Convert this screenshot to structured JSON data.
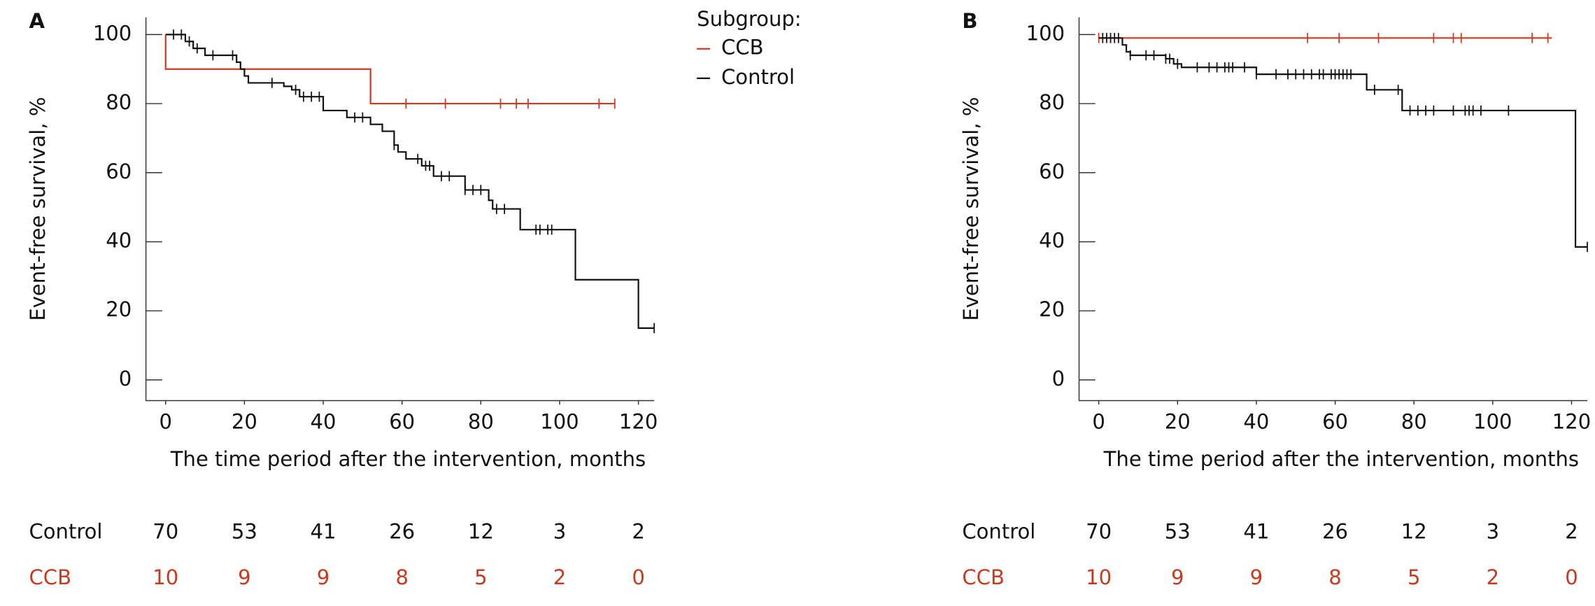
{
  "chart_data": [
    {
      "type": "step",
      "panel": "A",
      "x_label": "The time period after the intervention, months",
      "y_label": "Event-free survival, %",
      "xlim": [
        -5,
        124
      ],
      "ylim": [
        -6,
        105
      ],
      "xticks": [
        0,
        20,
        40,
        60,
        80,
        100,
        120
      ],
      "yticks": [
        0,
        20,
        40,
        60,
        80,
        100
      ],
      "legend_title": "Subgroup:",
      "series": [
        {
          "name": "CCB",
          "color": "#d0391f",
          "x": [
            0,
            0,
            52,
            114
          ],
          "values": [
            100,
            90,
            80,
            80
          ],
          "censored": [
            61,
            71,
            85,
            89,
            92,
            110,
            114
          ]
        },
        {
          "name": "Control",
          "color": "#111111",
          "x": [
            0,
            5,
            7,
            10,
            18,
            19,
            20,
            21,
            30,
            32,
            34,
            40,
            46,
            52,
            55,
            58,
            59,
            61,
            65,
            68,
            76,
            82,
            83,
            90,
            104,
            120,
            124
          ],
          "values": [
            100,
            98,
            96,
            94,
            92,
            90,
            88,
            86,
            85,
            84,
            82,
            78,
            76,
            74,
            72,
            68,
            66,
            64,
            62,
            59,
            55,
            52,
            49.5,
            43.5,
            29,
            15,
            15
          ],
          "censored": [
            2,
            4,
            6,
            8,
            12,
            17,
            27,
            33,
            35,
            37,
            39,
            48,
            50,
            58,
            64,
            66,
            67,
            70,
            72,
            76,
            78,
            80,
            84,
            86,
            94,
            95,
            97,
            98,
            124
          ]
        }
      ],
      "risk_table": [
        {
          "name": "Control",
          "color": "#111111",
          "values": [
            70,
            53,
            41,
            26,
            12,
            3,
            2
          ]
        },
        {
          "name": "CCB",
          "color": "#c8391e",
          "values": [
            10,
            9,
            9,
            8,
            5,
            2,
            0
          ]
        }
      ]
    },
    {
      "type": "step",
      "panel": "B",
      "x_label": "The time period after the intervention, months",
      "y_label": "Event-free survival, %",
      "xlim": [
        -5,
        124
      ],
      "ylim": [
        -6,
        105
      ],
      "xticks": [
        0,
        20,
        40,
        60,
        80,
        100,
        120
      ],
      "yticks": [
        0,
        20,
        40,
        60,
        80,
        100
      ],
      "series": [
        {
          "color": "#d0391f",
          "x": [
            0,
            115
          ],
          "values": [
            99,
            99
          ],
          "censored": [
            0,
            53,
            61,
            71,
            85,
            90,
            92,
            110,
            114
          ]
        },
        {
          "color": "#111111",
          "x": [
            0,
            6,
            7,
            8,
            17,
            19,
            21,
            40,
            68,
            77,
            121,
            124
          ],
          "values": [
            99,
            97,
            95,
            94,
            93,
            91.5,
            90.5,
            88.5,
            84,
            78,
            38.5,
            38.5
          ],
          "censored": [
            1,
            2,
            3,
            4,
            5,
            8,
            12,
            14,
            17,
            18,
            20,
            25,
            28,
            30,
            32,
            33,
            34,
            37,
            40,
            45,
            48,
            50,
            52,
            54,
            56,
            57,
            59,
            60,
            61,
            62,
            63,
            64,
            70,
            76,
            79,
            81,
            83,
            85,
            90,
            93,
            94,
            95,
            97,
            104,
            124
          ]
        }
      ],
      "risk_table": [
        {
          "name": "Control",
          "color": "#111111",
          "values": [
            70,
            53,
            41,
            26,
            12,
            3,
            2
          ]
        },
        {
          "name": "CCB",
          "color": "#c8391e",
          "values": [
            10,
            9,
            9,
            8,
            5,
            2,
            0
          ]
        }
      ]
    }
  ]
}
